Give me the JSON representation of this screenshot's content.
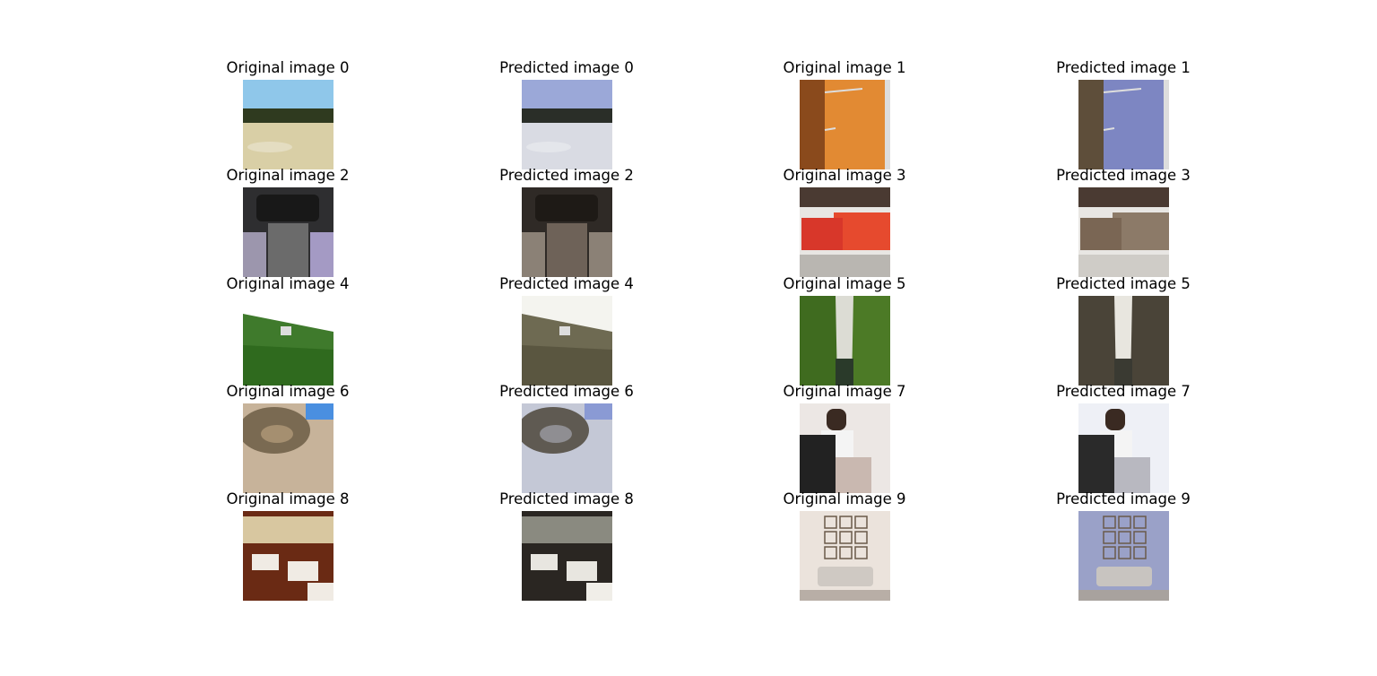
{
  "figure": {
    "rows": [
      {
        "original_label": "Original image 0",
        "predicted_label": "Predicted image 0",
        "original_label_2": "Original image 1",
        "predicted_label_2": "Predicted image 1"
      },
      {
        "original_label": "Original image 2",
        "predicted_label": "Predicted image 2",
        "original_label_2": "Original image 3",
        "predicted_label_2": "Predicted image 3"
      },
      {
        "original_label": "Original image 4",
        "predicted_label": "Predicted image 4",
        "original_label_2": "Original image 5",
        "predicted_label_2": "Predicted image 5"
      },
      {
        "original_label": "Original image 6",
        "predicted_label": "Predicted image 6",
        "original_label_2": "Original image 7",
        "predicted_label_2": "Predicted image 7"
      },
      {
        "original_label": "Original image 8",
        "predicted_label": "Predicted image 8",
        "original_label_2": "Original image 9",
        "predicted_label_2": "Predicted image 9"
      }
    ]
  },
  "scenes": [
    "dry-field-landscape",
    "orange-wall-door",
    "helicopter-cockpit",
    "fire-station",
    "green-hillside",
    "forest-river",
    "stone-amphitheater",
    "man-with-poster",
    "restaurant-interior",
    "living-room-wall-art"
  ],
  "colors": {
    "original": {
      "sky": "#8fc7ea",
      "field": "#d9cfa6",
      "trees": "#2f3a1f",
      "orange_wall": "#e28a33",
      "wood": "#8a4a1c",
      "cockpit_dark": "#2e2e30",
      "cockpit_panel": "#6b6b6b",
      "cockpit_purple": "#a49ac4",
      "fire_red": "#d8372a",
      "building_white": "#e8e6e3",
      "road": "#b9b6b1",
      "hill_green": "#3f7a2c",
      "river_green": "#3f6b1f",
      "river_water": "#2a3a2a",
      "amphi_stone": "#c7b39a",
      "amphi_sky": "#4a8fe0",
      "poster_black": "#222222",
      "room_white": "#ece7e4",
      "rest_wood": "#6a2a14",
      "rest_table": "#f0ebe4",
      "sofa_grey": "#cfc9c3",
      "wall_beige": "#ebe3dc"
    },
    "predicted": {
      "sky": "#9ba8d8",
      "field": "#d9dbe3",
      "trees": "#2a2e28",
      "blue_wall": "#7d86c2",
      "wood": "#5e4e3a",
      "cockpit_dark": "#2f2a26",
      "cockpit_panel": "#6e6258",
      "fire_brown": "#7a6654",
      "building_white": "#e8e6e3",
      "hill_brown": "#6e6a52",
      "sky_light": "#f4f4ef",
      "amphi_stone": "#c4c8d6",
      "sepia": "#4a4438",
      "rest_dark": "#2a2622",
      "wall_blue": "#9aa1c8"
    }
  }
}
